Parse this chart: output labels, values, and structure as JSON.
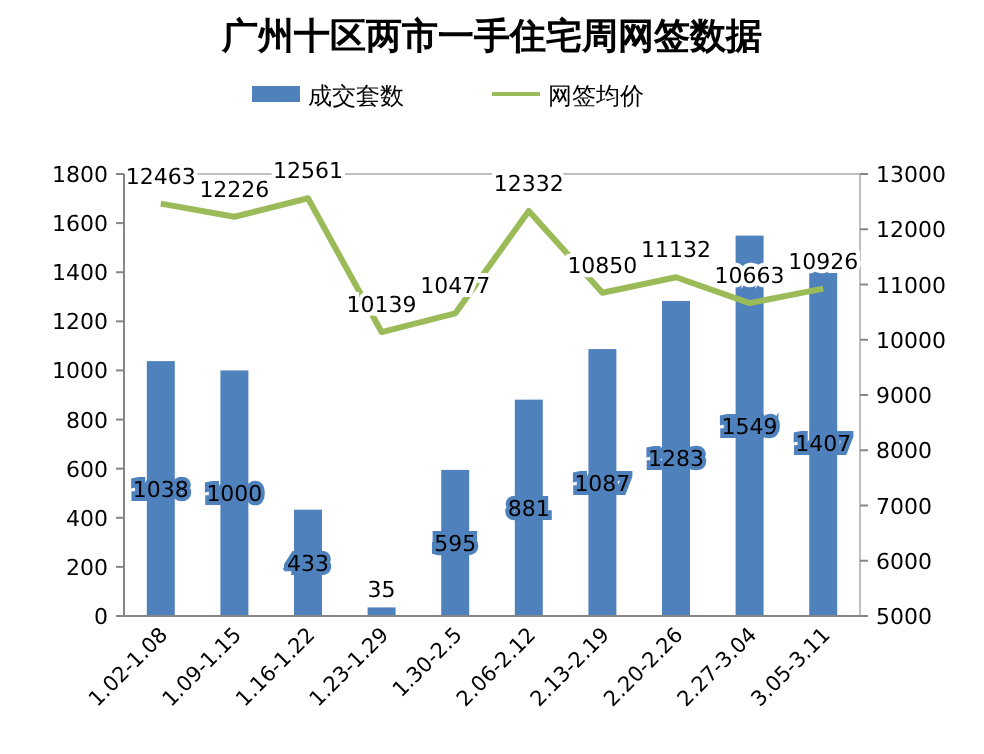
{
  "chart_data": {
    "type": "bar",
    "title": "广州十区两市一手住宅周网签数据",
    "categories": [
      "1.02-1.08",
      "1.09-1.15",
      "1.16-1.22",
      "1.23-1.29",
      "1.30-2.5",
      "2.06-2.12",
      "2.13-2.19",
      "2.20-2.26",
      "2.27-3.04",
      "3.05-3.11"
    ],
    "series": [
      {
        "name": "成交套数",
        "color": "#4f81bd",
        "values": [
          1038,
          1000,
          433,
          35,
          595,
          881,
          1087,
          1283,
          1549,
          1407
        ]
      },
      {
        "name": "网签均价",
        "type": "line",
        "axis": "y2",
        "color": "#9bbb59",
        "values": [
          12463,
          12226,
          12561,
          10139,
          10477,
          12332,
          10850,
          11132,
          10663,
          10926
        ]
      }
    ],
    "ylim": [
      0,
      1800
    ],
    "yticks": [
      0,
      200,
      400,
      600,
      800,
      1000,
      1200,
      1400,
      1600,
      1800
    ],
    "y2lim": [
      5000,
      13000
    ],
    "y2ticks": [
      5000,
      6000,
      7000,
      8000,
      9000,
      10000,
      11000,
      12000,
      13000
    ],
    "data_labels": true,
    "legend": "top",
    "grid": false,
    "marker": "none"
  }
}
